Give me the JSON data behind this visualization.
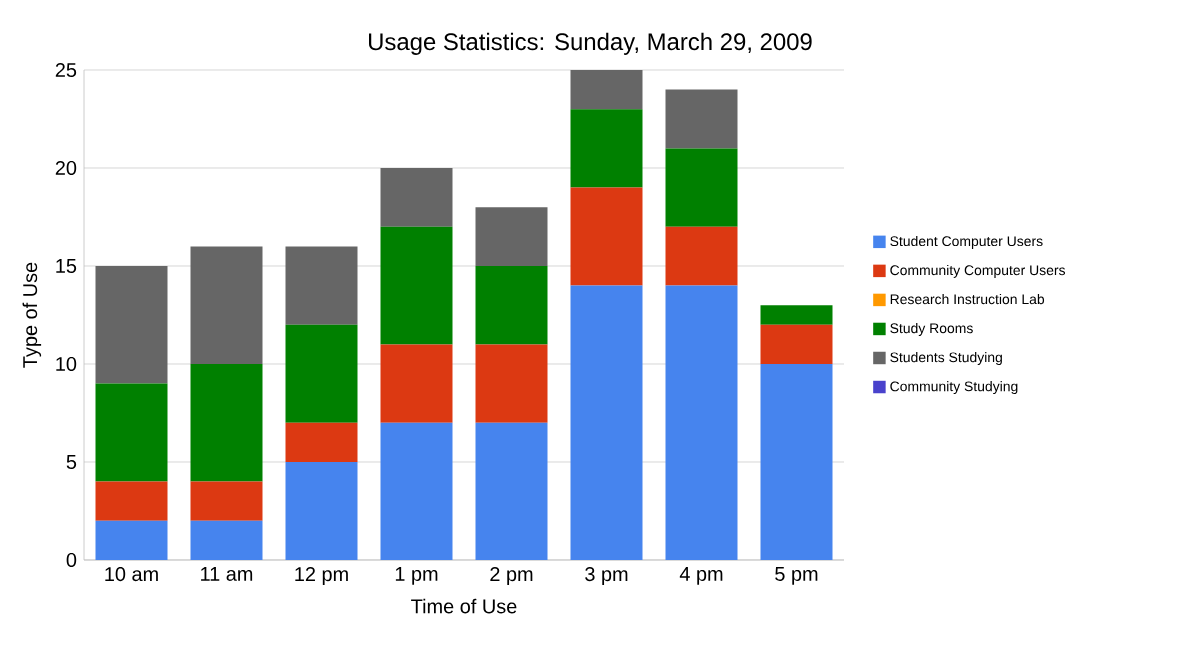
{
  "chart_data": {
    "type": "bar",
    "title": "Usage Statistics: Sunday, March 29, 2009",
    "xlabel": "Time of Use",
    "ylabel": "Type of Use",
    "categories": [
      "10 am",
      "11 am",
      "12 pm",
      "1 pm",
      "2 pm",
      "3 pm",
      "4 pm",
      "5 pm"
    ],
    "stacked": true,
    "ylim": [
      0,
      25
    ],
    "yticks": [
      0,
      5,
      10,
      15,
      20,
      25
    ],
    "grid": "y",
    "legend": "right",
    "series": [
      {
        "name": "Student Computer Users",
        "color": "#4684ee",
        "values": [
          2,
          2,
          5,
          7,
          7,
          14,
          14,
          10
        ]
      },
      {
        "name": "Community Computer Users",
        "color": "#dc3912",
        "values": [
          2,
          2,
          2,
          4,
          4,
          5,
          3,
          2
        ]
      },
      {
        "name": "Research Instruction Lab",
        "color": "#ff9900",
        "values": [
          0,
          0,
          0,
          0,
          0,
          0,
          0,
          0
        ]
      },
      {
        "name": "Study Rooms",
        "color": "#008000",
        "values": [
          5,
          6,
          5,
          6,
          4,
          4,
          4,
          1
        ]
      },
      {
        "name": "Students Studying",
        "color": "#666666",
        "values": [
          6,
          6,
          4,
          3,
          3,
          2,
          3,
          0
        ]
      },
      {
        "name": "Community Studying",
        "color": "#4942cc",
        "values": [
          0,
          0,
          0,
          0,
          0,
          0,
          0,
          0
        ]
      }
    ]
  }
}
